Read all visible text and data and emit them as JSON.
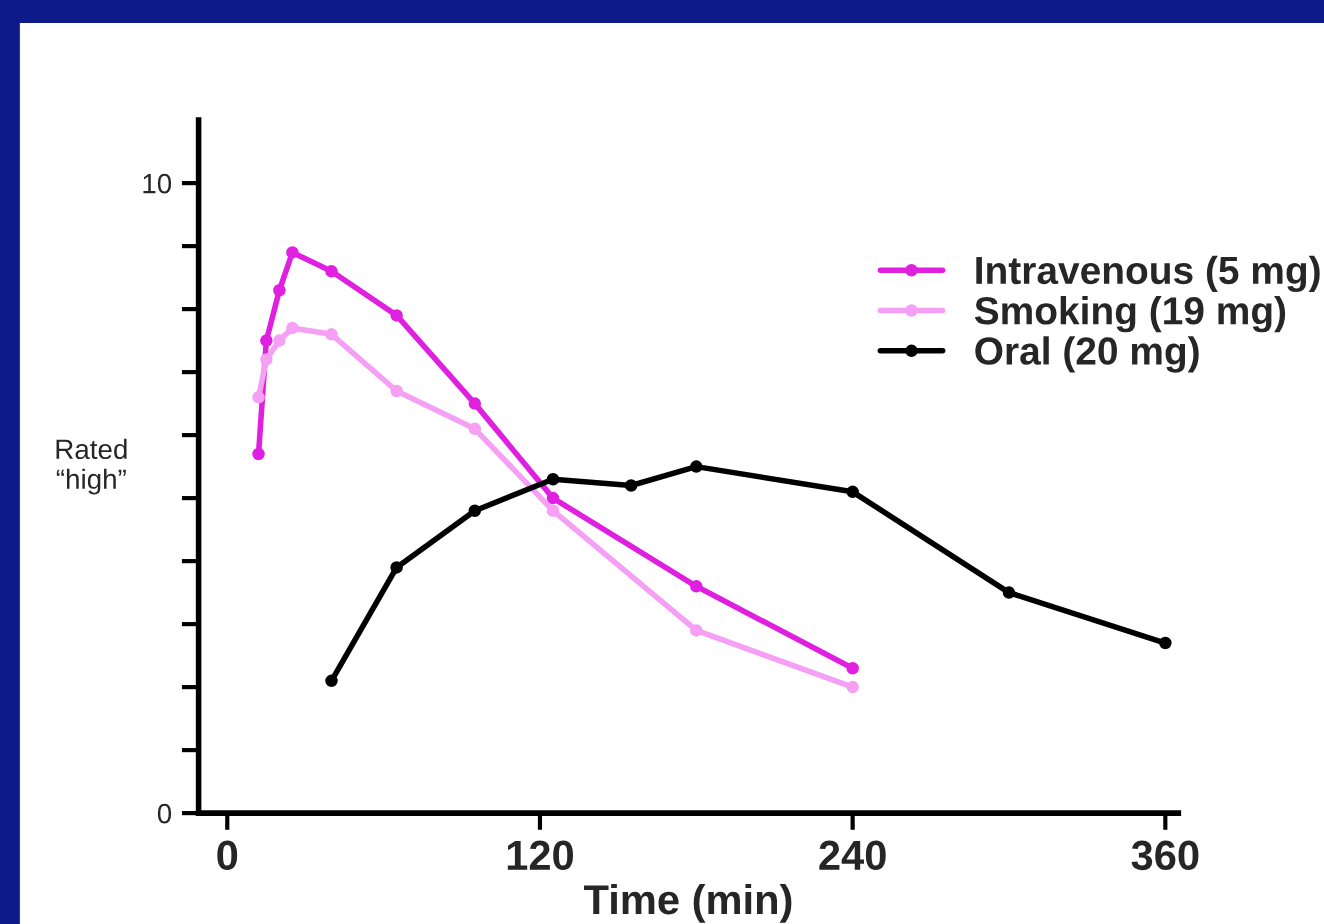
{
  "chart_data": {
    "type": "line",
    "xlabel": "Time (min)",
    "ylabel": "Rated\n“high”",
    "xlim": [
      -11,
      365
    ],
    "xticks": [
      0,
      120,
      240,
      360
    ],
    "ylim": [
      0,
      11
    ],
    "yticks": [
      0,
      {
        "value": 1,
        "label": null
      },
      {
        "value": 2,
        "label": null
      },
      {
        "value": 3,
        "label": null
      },
      {
        "value": 4,
        "label": null
      },
      {
        "value": 5,
        "label": null
      },
      {
        "value": 6,
        "label": null
      },
      {
        "value": 7,
        "label": null
      },
      {
        "value": 8,
        "label": null
      },
      {
        "value": 9,
        "label": null
      },
      10
    ],
    "marker": "circle",
    "line_style": "solid",
    "grid": false,
    "legend": "right",
    "series": [
      {
        "name": "Intravenous (5 mg)",
        "color": "#e020e0",
        "x": [
          12,
          15,
          20,
          25,
          40,
          65,
          95,
          125,
          180,
          240
        ],
        "values": [
          5.7,
          7.5,
          8.3,
          8.9,
          8.6,
          7.9,
          6.5,
          5.0,
          3.6,
          2.3
        ]
      },
      {
        "name": "Smoking (19 mg)",
        "color": "#f5a0f5",
        "x": [
          12,
          15,
          20,
          25,
          40,
          65,
          95,
          125,
          180,
          240
        ],
        "values": [
          6.6,
          7.2,
          7.5,
          7.7,
          7.6,
          6.7,
          6.1,
          4.8,
          2.9,
          2.0
        ]
      },
      {
        "name": "Oral (20 mg)",
        "color": "#000000",
        "x": [
          40,
          65,
          95,
          125,
          155,
          180,
          240,
          300,
          360
        ],
        "values": [
          2.1,
          3.9,
          4.8,
          5.3,
          5.2,
          5.5,
          5.1,
          3.5,
          2.7
        ]
      }
    ]
  }
}
